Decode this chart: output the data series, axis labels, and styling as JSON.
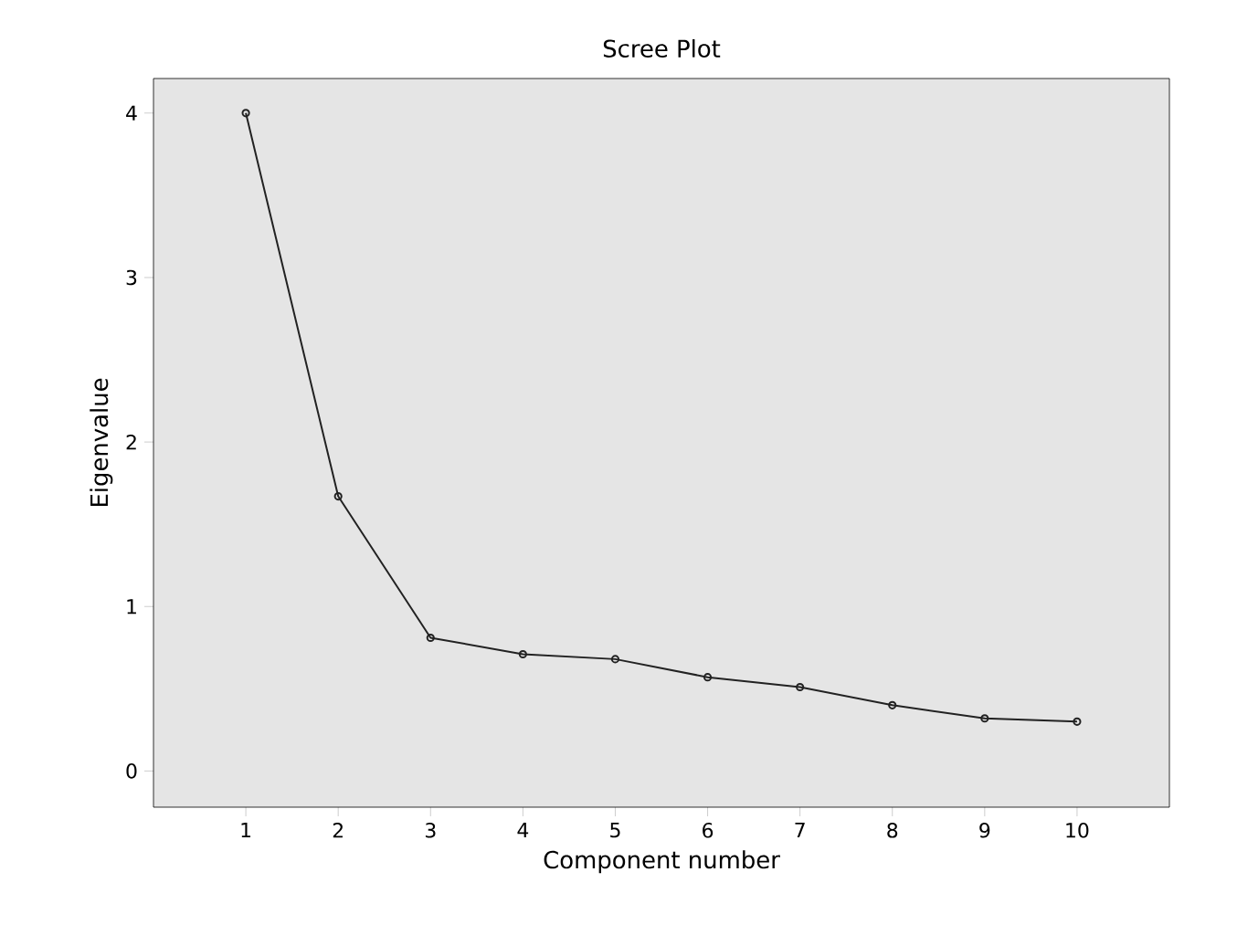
{
  "chart_data": {
    "type": "line",
    "title": "Scree Plot",
    "xlabel": "Component number",
    "ylabel": "Eigenvalue",
    "x": [
      1,
      2,
      3,
      4,
      5,
      6,
      7,
      8,
      9,
      10
    ],
    "series": [
      {
        "color": "#222222",
        "values": [
          4.0,
          1.67,
          0.81,
          0.71,
          0.68,
          0.57,
          0.51,
          0.4,
          0.32,
          0.3
        ]
      }
    ],
    "xlim": [
      0,
      11
    ],
    "xticks": [
      1,
      2,
      3,
      4,
      5,
      6,
      7,
      8,
      9,
      10
    ],
    "ylim": [
      -0.22,
      4.21
    ],
    "yticks": [
      0,
      1,
      2,
      3,
      4
    ],
    "marker": "circle",
    "line_style": "solid"
  }
}
